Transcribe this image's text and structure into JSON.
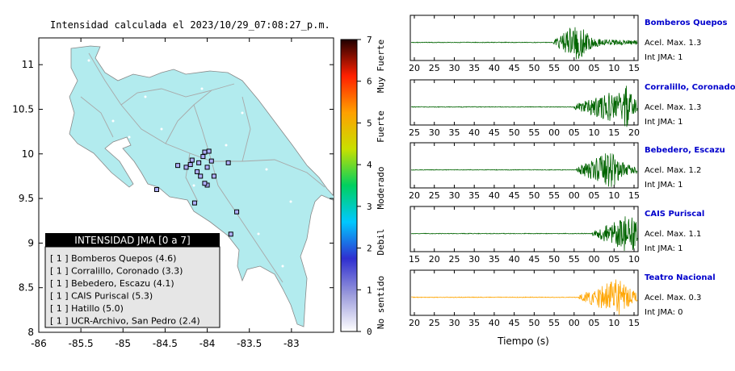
{
  "map": {
    "title": "Intensidad calculada el 2023/10/29_07:08:27_p.m.",
    "x_ticks": [
      "-86",
      "-85.5",
      "-85",
      "-84.5",
      "-84",
      "-83.5",
      "-83"
    ],
    "y_ticks": [
      "11",
      "10.5",
      "10",
      "9.5",
      "9",
      "8.5",
      "8"
    ],
    "xlim": [
      -86,
      -82.5
    ],
    "ylim": [
      8,
      11.3
    ],
    "land_color": "#b2ebee",
    "stations": [
      {
        "lon": -84.25,
        "lat": 9.85
      },
      {
        "lon": -84.18,
        "lat": 9.93
      },
      {
        "lon": -84.1,
        "lat": 9.9
      },
      {
        "lon": -84.05,
        "lat": 9.97
      },
      {
        "lon": -84.03,
        "lat": 10.02
      },
      {
        "lon": -83.98,
        "lat": 10.03
      },
      {
        "lon": -84.12,
        "lat": 9.8
      },
      {
        "lon": -84.2,
        "lat": 9.88
      },
      {
        "lon": -84.0,
        "lat": 9.85
      },
      {
        "lon": -83.95,
        "lat": 9.92
      },
      {
        "lon": -84.08,
        "lat": 9.75
      },
      {
        "lon": -83.92,
        "lat": 9.75
      },
      {
        "lon": -84.35,
        "lat": 9.87
      },
      {
        "lon": -83.75,
        "lat": 9.9
      },
      {
        "lon": -84.0,
        "lat": 9.65
      },
      {
        "lon": -84.6,
        "lat": 9.6
      },
      {
        "lon": -84.15,
        "lat": 9.45
      },
      {
        "lon": -83.65,
        "lat": 9.35
      },
      {
        "lon": -83.72,
        "lat": 9.1
      },
      {
        "lon": -84.03,
        "lat": 9.67
      }
    ]
  },
  "legend": {
    "title": "INTENSIDAD JMA [0 a 7]",
    "items": [
      "[ 1 ]  Bomberos Quepos (4.6)",
      "[ 1 ]  Corralillo, Coronado (3.3)",
      "[ 1 ]  Bebedero, Escazu (4.1)",
      "[ 1 ]  CAIS Puriscal (5.3)",
      "[ 1 ]  Hatillo (5.0)",
      "[ 1 ]  UCR-Archivo, San Pedro (2.4)"
    ]
  },
  "colorbar": {
    "ticks": [
      "0",
      "1",
      "2",
      "3",
      "4",
      "5",
      "6",
      "7"
    ],
    "labels": [
      "No sentido",
      "Debil",
      "Moderado",
      "Fuerte",
      "Muy Fuerte"
    ],
    "colors": [
      "#ffffff",
      "#9c9cdc",
      "#2f2fd0",
      "#00c8ff",
      "#00d060",
      "#c8e000",
      "#ffa000",
      "#ff2000",
      "#200000"
    ]
  },
  "chart_data": {
    "type": "line",
    "xlabel": "Tiempo (s)",
    "panels": [
      {
        "station": "Bomberos Quepos",
        "accel": "Acel. Max. 1.3",
        "int": "Int JMA: 1",
        "color": "#006400",
        "ticks": [
          "20",
          "25",
          "30",
          "35",
          "40",
          "45",
          "50",
          "55",
          "00",
          "05",
          "10",
          "15"
        ],
        "onset": 0.63,
        "peak": 0.74
      },
      {
        "station": "Corralillo, Coronado",
        "accel": "Acel. Max. 1.3",
        "int": "Int JMA: 1",
        "color": "#006400",
        "ticks": [
          "25",
          "30",
          "35",
          "40",
          "45",
          "50",
          "55",
          "00",
          "05",
          "10",
          "15",
          "20"
        ],
        "onset": 0.72,
        "peak": 0.95
      },
      {
        "station": "Bebedero, Escazu",
        "accel": "Acel. Max. 1.2",
        "int": "Int JMA: 1",
        "color": "#006400",
        "ticks": [
          "20",
          "25",
          "30",
          "35",
          "40",
          "45",
          "50",
          "55",
          "00",
          "05",
          "10",
          "15"
        ],
        "onset": 0.73,
        "peak": 0.89
      },
      {
        "station": "CAIS Puriscal",
        "accel": "Acel. Max. 1.1",
        "int": "Int JMA: 1",
        "color": "#006400",
        "ticks": [
          "15",
          "20",
          "25",
          "30",
          "35",
          "40",
          "45",
          "50",
          "55",
          "00",
          "05",
          "10"
        ],
        "onset": 0.8,
        "peak": 0.97
      },
      {
        "station": "Teatro Nacional",
        "accel": "Acel. Max. 0.3",
        "int": "Int JMA: 0",
        "color": "#ffa500",
        "ticks": [
          "20",
          "25",
          "30",
          "35",
          "40",
          "45",
          "50",
          "55",
          "00",
          "05",
          "10",
          "15"
        ],
        "onset": 0.74,
        "peak": 0.93
      }
    ]
  }
}
